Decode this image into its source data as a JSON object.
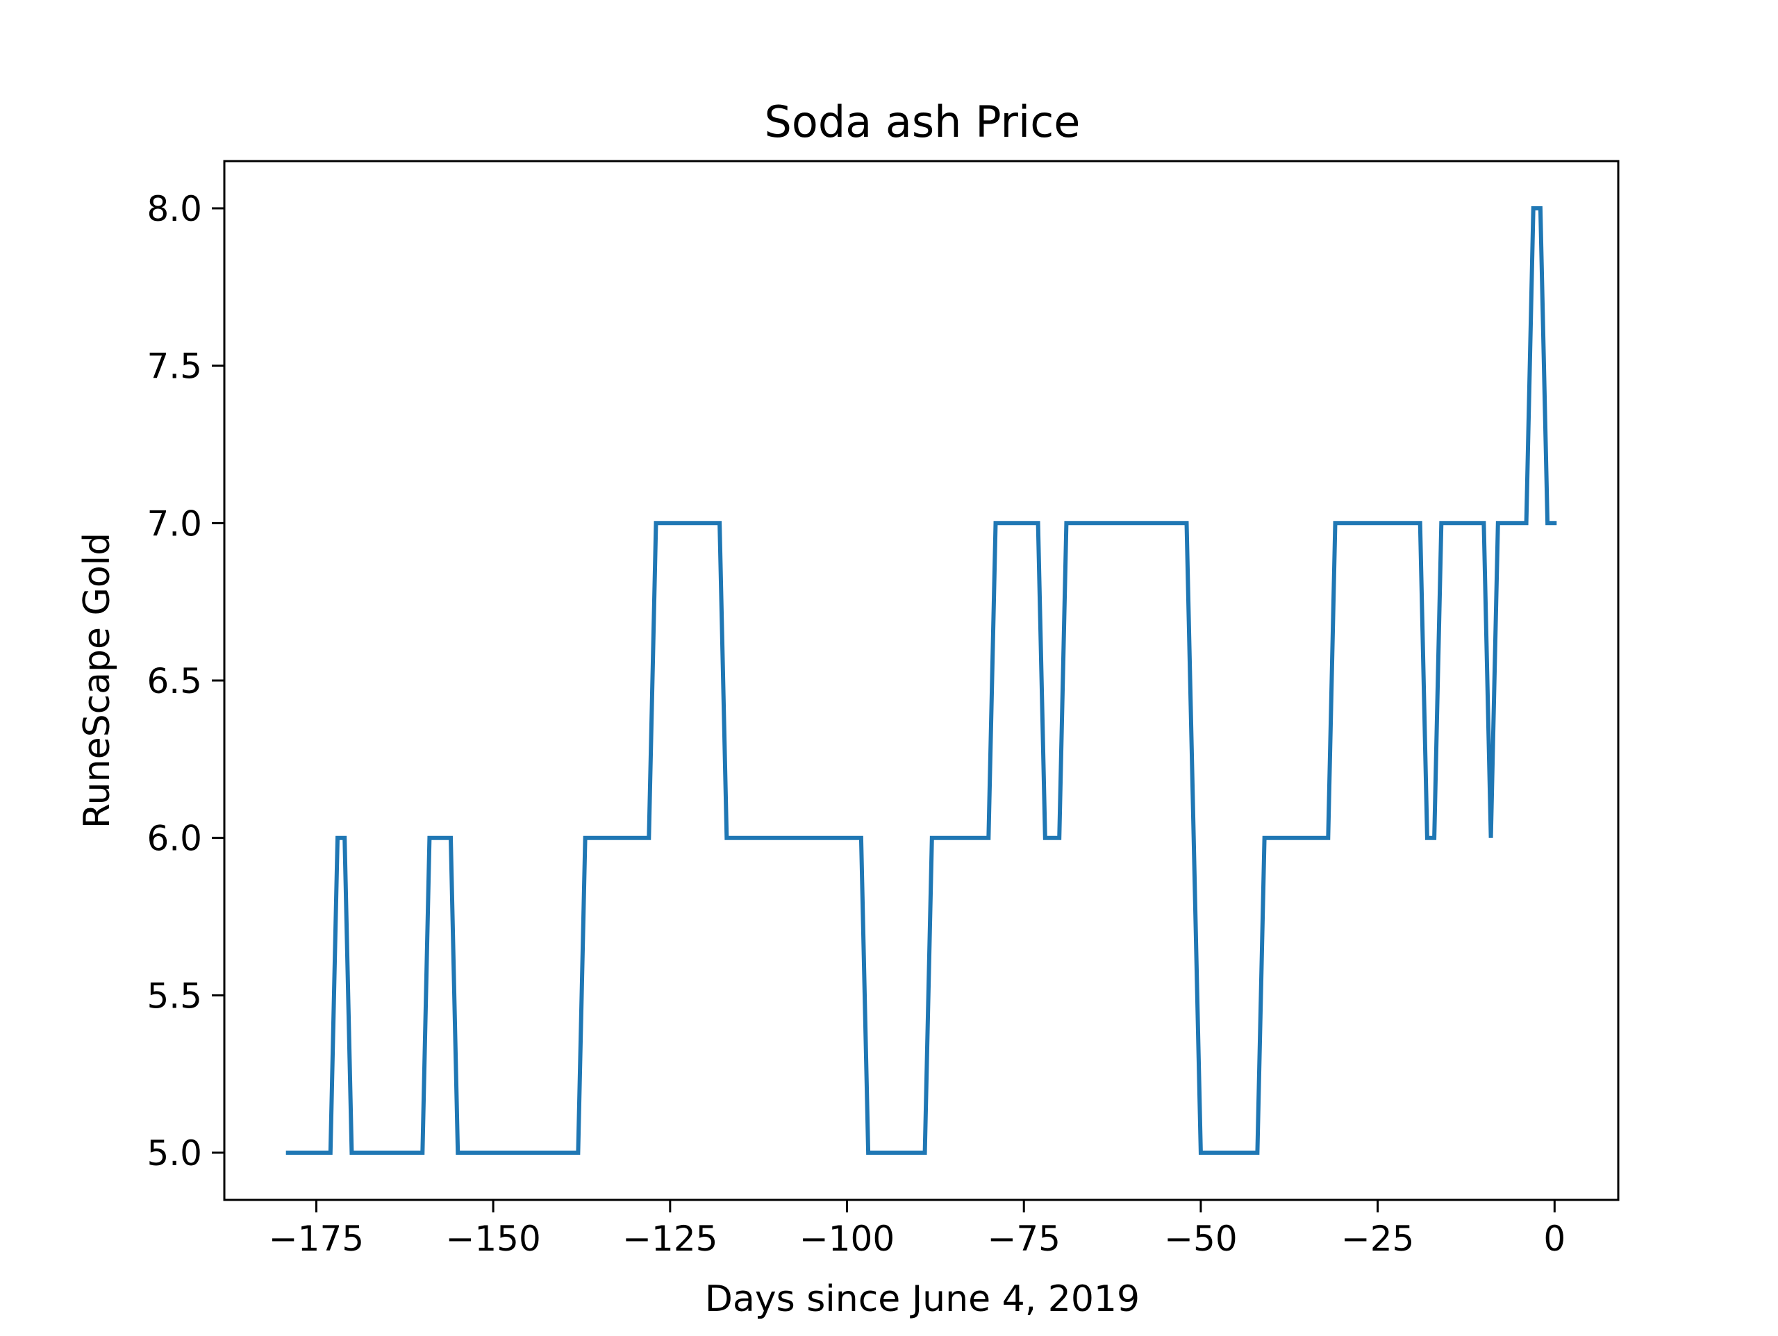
{
  "chart_data": {
    "type": "line",
    "title": "Soda ash Price",
    "xlabel": "Days since June 4, 2019",
    "ylabel": "RuneScape Gold",
    "xlim": [
      -188,
      9
    ],
    "ylim": [
      4.85,
      8.15
    ],
    "x_ticks": [
      -175,
      -150,
      -125,
      -100,
      -75,
      -50,
      -25,
      0
    ],
    "x_tick_labels": [
      "−175",
      "−150",
      "−125",
      "−100",
      "−75",
      "−50",
      "−25",
      "0"
    ],
    "y_ticks": [
      5.0,
      5.5,
      6.0,
      6.5,
      7.0,
      7.5,
      8.0
    ],
    "y_tick_labels": [
      "5.0",
      "5.5",
      "6.0",
      "6.5",
      "7.0",
      "7.5",
      "8.0"
    ],
    "grid": false,
    "series": [
      {
        "color": "#1f77b4",
        "x": [
          -179,
          -173,
          -172,
          -171,
          -170,
          -160,
          -159,
          -156,
          -155,
          -138,
          -137,
          -128,
          -127,
          -118,
          -117,
          -98,
          -97,
          -89,
          -88,
          -80,
          -79,
          -73,
          -72,
          -70,
          -69,
          -52,
          -50,
          -42,
          -41,
          -32,
          -31,
          -19,
          -18,
          -17,
          -16,
          -10,
          -9,
          -8,
          -4,
          -3,
          -2,
          -1,
          0
        ],
        "values": [
          5.0,
          5.0,
          6.0,
          6.0,
          5.0,
          5.0,
          6.0,
          6.0,
          5.0,
          5.0,
          6.0,
          6.0,
          7.0,
          7.0,
          6.0,
          6.0,
          5.0,
          5.0,
          6.0,
          6.0,
          7.0,
          7.0,
          6.0,
          6.0,
          7.0,
          7.0,
          5.0,
          5.0,
          6.0,
          6.0,
          7.0,
          7.0,
          6.0,
          6.0,
          7.0,
          7.0,
          6.0,
          7.0,
          7.0,
          8.0,
          8.0,
          7.0,
          7.0
        ]
      }
    ]
  }
}
